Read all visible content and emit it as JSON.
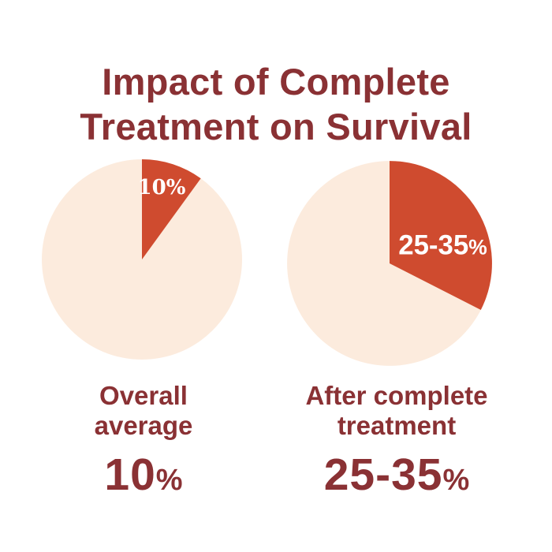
{
  "title": {
    "line1": "Impact of Complete",
    "line2": "Treatment on Survival",
    "full": "Impact of Complete Treatment on Survival"
  },
  "colors": {
    "background": "#ffffff",
    "title_text": "#8a3134",
    "caption_text": "#8a3134",
    "pie_base": "#fcebdd",
    "pie_slice": "#cf4b2f",
    "slice_label_text": "#ffffff"
  },
  "chart_data": {
    "type": "pie",
    "title": "Impact of Complete Treatment on Survival",
    "legend": "none",
    "start_angle_deg": 0,
    "direction": "clockwise",
    "pies": [
      {
        "name": "overall-average",
        "caption_line1": "Overall",
        "caption_line2": "average",
        "slice_label_main": "10",
        "slice_label_pct": "%",
        "value_main": "10",
        "value_pct": "%",
        "slice_percent": 10,
        "drawn_percent": 10,
        "remainder_percent": 90
      },
      {
        "name": "after-complete-treatment",
        "caption_line1": "After complete",
        "caption_line2": "treatment",
        "slice_label_main": "25-35",
        "slice_label_pct": "%",
        "value_main": "25-35",
        "value_pct": "%",
        "slice_percent_range": [
          25,
          35
        ],
        "drawn_percent": 32.5,
        "remainder_percent": 67.5
      }
    ]
  }
}
